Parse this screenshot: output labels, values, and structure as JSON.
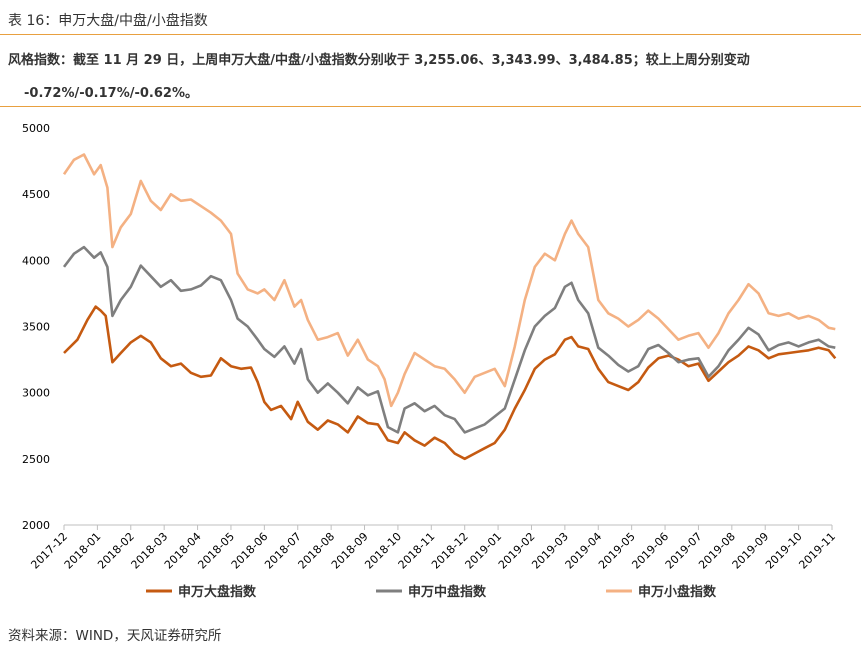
{
  "caption": "表 16：申万大盘/中盘/小盘指数",
  "description": {
    "line1": "风格指数：截至 11 月 29 日，上周申万大盘/中盘/小盘指数分别收于 3,255.06、3,343.99、3,484.85；较上上周分别变动",
    "line2": "-0.72%/-0.17%/-0.62%。"
  },
  "source": "资料来源：WIND，天风证券研究所",
  "chart_data": {
    "type": "line",
    "title": "",
    "xlabel": "",
    "ylabel": "",
    "ylim": [
      2000,
      5000
    ],
    "yticks": [
      2000,
      2500,
      3000,
      3500,
      4000,
      4500,
      5000
    ],
    "xtick_labels": [
      "2017-12",
      "2018-01",
      "2018-02",
      "2018-03",
      "2018-04",
      "2018-05",
      "2018-06",
      "2018-07",
      "2018-08",
      "2018-09",
      "2018-10",
      "2018-11",
      "2018-12",
      "2019-01",
      "2019-02",
      "2019-03",
      "2019-04",
      "2019-05",
      "2019-06",
      "2019-07",
      "2019-08",
      "2019-09",
      "2019-10",
      "2019-11"
    ],
    "grid": false,
    "legend_position": "bottom",
    "series": [
      {
        "name": "申万大盘指数",
        "color": "#c55a11",
        "points": [
          [
            0,
            3300
          ],
          [
            0.4,
            3400
          ],
          [
            0.7,
            3550
          ],
          [
            0.95,
            3650
          ],
          [
            1.1,
            3620
          ],
          [
            1.25,
            3580
          ],
          [
            1.45,
            3230
          ],
          [
            1.7,
            3300
          ],
          [
            2.0,
            3380
          ],
          [
            2.3,
            3430
          ],
          [
            2.6,
            3380
          ],
          [
            2.9,
            3260
          ],
          [
            3.2,
            3200
          ],
          [
            3.5,
            3220
          ],
          [
            3.8,
            3150
          ],
          [
            4.1,
            3120
          ],
          [
            4.4,
            3130
          ],
          [
            4.7,
            3260
          ],
          [
            5.0,
            3200
          ],
          [
            5.3,
            3180
          ],
          [
            5.6,
            3190
          ],
          [
            5.8,
            3080
          ],
          [
            6.0,
            2930
          ],
          [
            6.2,
            2870
          ],
          [
            6.5,
            2900
          ],
          [
            6.8,
            2800
          ],
          [
            7.0,
            2930
          ],
          [
            7.3,
            2780
          ],
          [
            7.6,
            2720
          ],
          [
            7.9,
            2790
          ],
          [
            8.2,
            2760
          ],
          [
            8.5,
            2700
          ],
          [
            8.8,
            2820
          ],
          [
            9.1,
            2770
          ],
          [
            9.4,
            2760
          ],
          [
            9.7,
            2640
          ],
          [
            10.0,
            2620
          ],
          [
            10.2,
            2700
          ],
          [
            10.5,
            2640
          ],
          [
            10.8,
            2600
          ],
          [
            11.1,
            2660
          ],
          [
            11.4,
            2620
          ],
          [
            11.7,
            2540
          ],
          [
            12.0,
            2500
          ],
          [
            12.3,
            2540
          ],
          [
            12.6,
            2580
          ],
          [
            12.9,
            2620
          ],
          [
            13.2,
            2720
          ],
          [
            13.5,
            2880
          ],
          [
            13.8,
            3020
          ],
          [
            14.1,
            3180
          ],
          [
            14.4,
            3250
          ],
          [
            14.7,
            3290
          ],
          [
            15.0,
            3400
          ],
          [
            15.2,
            3420
          ],
          [
            15.4,
            3350
          ],
          [
            15.7,
            3330
          ],
          [
            16.0,
            3180
          ],
          [
            16.3,
            3080
          ],
          [
            16.6,
            3050
          ],
          [
            16.9,
            3020
          ],
          [
            17.2,
            3080
          ],
          [
            17.5,
            3190
          ],
          [
            17.8,
            3260
          ],
          [
            18.1,
            3280
          ],
          [
            18.4,
            3250
          ],
          [
            18.7,
            3200
          ],
          [
            19.0,
            3220
          ],
          [
            19.3,
            3090
          ],
          [
            19.6,
            3160
          ],
          [
            19.9,
            3230
          ],
          [
            20.2,
            3280
          ],
          [
            20.5,
            3350
          ],
          [
            20.8,
            3320
          ],
          [
            21.1,
            3260
          ],
          [
            21.4,
            3290
          ],
          [
            21.7,
            3300
          ],
          [
            22.0,
            3310
          ],
          [
            22.3,
            3320
          ],
          [
            22.6,
            3340
          ],
          [
            22.9,
            3320
          ],
          [
            23.1,
            3260
          ]
        ]
      },
      {
        "name": "申万中盘指数",
        "color": "#7f7f7f",
        "points": [
          [
            0,
            3950
          ],
          [
            0.3,
            4050
          ],
          [
            0.6,
            4100
          ],
          [
            0.9,
            4020
          ],
          [
            1.1,
            4060
          ],
          [
            1.3,
            3950
          ],
          [
            1.45,
            3580
          ],
          [
            1.7,
            3700
          ],
          [
            2.0,
            3800
          ],
          [
            2.3,
            3960
          ],
          [
            2.6,
            3880
          ],
          [
            2.9,
            3800
          ],
          [
            3.2,
            3850
          ],
          [
            3.5,
            3770
          ],
          [
            3.8,
            3780
          ],
          [
            4.1,
            3810
          ],
          [
            4.4,
            3880
          ],
          [
            4.7,
            3850
          ],
          [
            5.0,
            3700
          ],
          [
            5.2,
            3560
          ],
          [
            5.5,
            3500
          ],
          [
            5.8,
            3400
          ],
          [
            6.0,
            3330
          ],
          [
            6.3,
            3270
          ],
          [
            6.6,
            3350
          ],
          [
            6.9,
            3220
          ],
          [
            7.1,
            3330
          ],
          [
            7.3,
            3100
          ],
          [
            7.6,
            3000
          ],
          [
            7.9,
            3070
          ],
          [
            8.2,
            3000
          ],
          [
            8.5,
            2920
          ],
          [
            8.8,
            3040
          ],
          [
            9.1,
            2980
          ],
          [
            9.4,
            3010
          ],
          [
            9.7,
            2740
          ],
          [
            10.0,
            2700
          ],
          [
            10.2,
            2880
          ],
          [
            10.5,
            2920
          ],
          [
            10.8,
            2860
          ],
          [
            11.1,
            2900
          ],
          [
            11.4,
            2830
          ],
          [
            11.7,
            2800
          ],
          [
            12.0,
            2700
          ],
          [
            12.3,
            2730
          ],
          [
            12.6,
            2760
          ],
          [
            12.9,
            2820
          ],
          [
            13.2,
            2880
          ],
          [
            13.5,
            3100
          ],
          [
            13.8,
            3320
          ],
          [
            14.1,
            3500
          ],
          [
            14.4,
            3580
          ],
          [
            14.7,
            3640
          ],
          [
            15.0,
            3800
          ],
          [
            15.2,
            3830
          ],
          [
            15.4,
            3700
          ],
          [
            15.7,
            3600
          ],
          [
            16.0,
            3340
          ],
          [
            16.3,
            3280
          ],
          [
            16.6,
            3210
          ],
          [
            16.9,
            3160
          ],
          [
            17.2,
            3200
          ],
          [
            17.5,
            3330
          ],
          [
            17.8,
            3360
          ],
          [
            18.1,
            3300
          ],
          [
            18.4,
            3230
          ],
          [
            18.7,
            3250
          ],
          [
            19.0,
            3260
          ],
          [
            19.3,
            3120
          ],
          [
            19.6,
            3200
          ],
          [
            19.9,
            3320
          ],
          [
            20.2,
            3400
          ],
          [
            20.5,
            3490
          ],
          [
            20.8,
            3440
          ],
          [
            21.1,
            3320
          ],
          [
            21.4,
            3360
          ],
          [
            21.7,
            3380
          ],
          [
            22.0,
            3350
          ],
          [
            22.3,
            3380
          ],
          [
            22.6,
            3400
          ],
          [
            22.9,
            3350
          ],
          [
            23.1,
            3340
          ]
        ]
      },
      {
        "name": "申万小盘指数",
        "color": "#f4b183",
        "points": [
          [
            0,
            4650
          ],
          [
            0.3,
            4760
          ],
          [
            0.6,
            4800
          ],
          [
            0.9,
            4650
          ],
          [
            1.1,
            4720
          ],
          [
            1.3,
            4550
          ],
          [
            1.45,
            4100
          ],
          [
            1.7,
            4250
          ],
          [
            2.0,
            4350
          ],
          [
            2.3,
            4600
          ],
          [
            2.6,
            4450
          ],
          [
            2.9,
            4380
          ],
          [
            3.2,
            4500
          ],
          [
            3.5,
            4450
          ],
          [
            3.8,
            4460
          ],
          [
            4.1,
            4410
          ],
          [
            4.4,
            4360
          ],
          [
            4.7,
            4300
          ],
          [
            5.0,
            4200
          ],
          [
            5.2,
            3900
          ],
          [
            5.5,
            3780
          ],
          [
            5.8,
            3750
          ],
          [
            6.0,
            3780
          ],
          [
            6.3,
            3700
          ],
          [
            6.6,
            3850
          ],
          [
            6.9,
            3650
          ],
          [
            7.1,
            3700
          ],
          [
            7.3,
            3550
          ],
          [
            7.6,
            3400
          ],
          [
            7.9,
            3420
          ],
          [
            8.2,
            3450
          ],
          [
            8.5,
            3280
          ],
          [
            8.8,
            3400
          ],
          [
            9.1,
            3250
          ],
          [
            9.4,
            3200
          ],
          [
            9.6,
            3100
          ],
          [
            9.8,
            2900
          ],
          [
            10.0,
            3000
          ],
          [
            10.2,
            3140
          ],
          [
            10.5,
            3300
          ],
          [
            10.8,
            3250
          ],
          [
            11.1,
            3200
          ],
          [
            11.4,
            3180
          ],
          [
            11.7,
            3100
          ],
          [
            12.0,
            3000
          ],
          [
            12.3,
            3120
          ],
          [
            12.6,
            3150
          ],
          [
            12.9,
            3180
          ],
          [
            13.2,
            3050
          ],
          [
            13.5,
            3350
          ],
          [
            13.8,
            3700
          ],
          [
            14.1,
            3950
          ],
          [
            14.4,
            4050
          ],
          [
            14.7,
            4000
          ],
          [
            15.0,
            4200
          ],
          [
            15.2,
            4300
          ],
          [
            15.4,
            4200
          ],
          [
            15.7,
            4100
          ],
          [
            16.0,
            3700
          ],
          [
            16.3,
            3600
          ],
          [
            16.6,
            3560
          ],
          [
            16.9,
            3500
          ],
          [
            17.2,
            3550
          ],
          [
            17.5,
            3620
          ],
          [
            17.8,
            3560
          ],
          [
            18.1,
            3480
          ],
          [
            18.4,
            3400
          ],
          [
            18.7,
            3430
          ],
          [
            19.0,
            3450
          ],
          [
            19.3,
            3340
          ],
          [
            19.6,
            3450
          ],
          [
            19.9,
            3600
          ],
          [
            20.2,
            3700
          ],
          [
            20.5,
            3820
          ],
          [
            20.8,
            3750
          ],
          [
            21.1,
            3600
          ],
          [
            21.4,
            3580
          ],
          [
            21.7,
            3600
          ],
          [
            22.0,
            3560
          ],
          [
            22.3,
            3580
          ],
          [
            22.6,
            3550
          ],
          [
            22.9,
            3490
          ],
          [
            23.1,
            3480
          ]
        ]
      }
    ]
  }
}
